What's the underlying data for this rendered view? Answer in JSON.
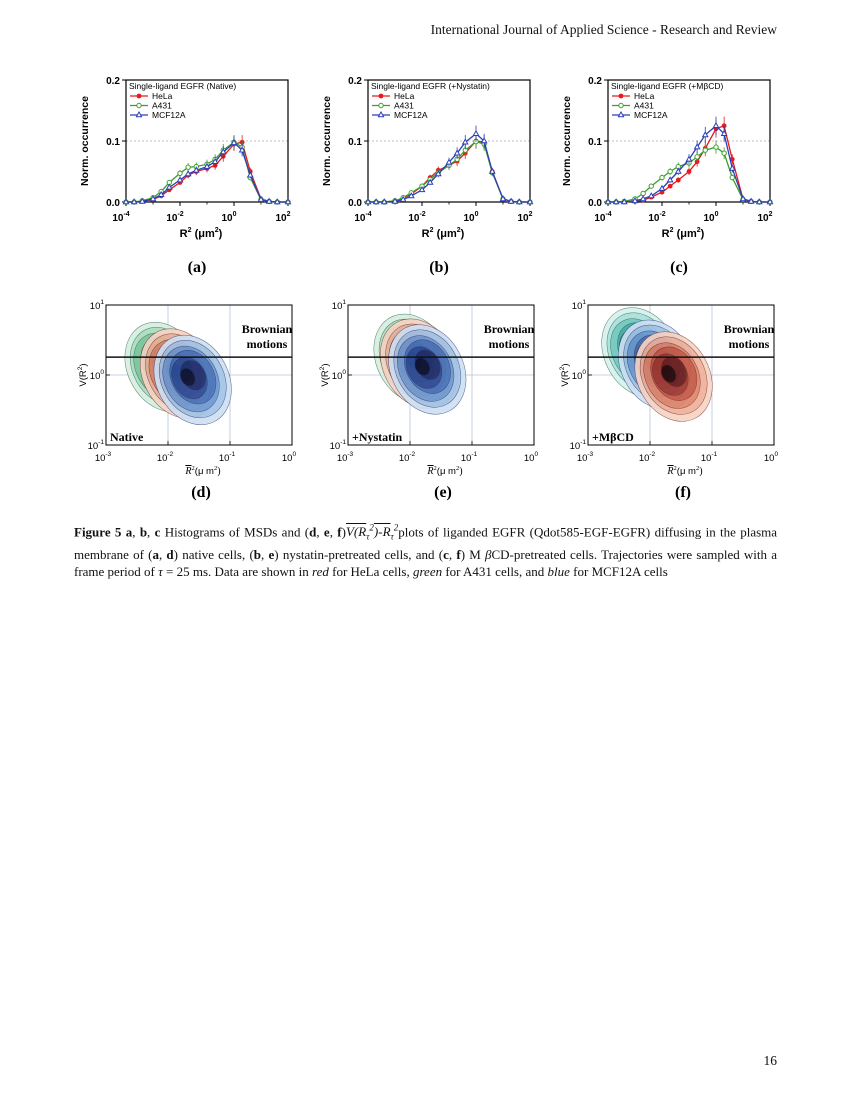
{
  "header": {
    "journal": "International Journal of Applied Science - Research and Review"
  },
  "page_number": "16",
  "hist_panels": [
    {
      "id": "a",
      "letter": "(a)",
      "legend_title": "Single-ligand EGFR (Native)"
    },
    {
      "id": "b",
      "letter": "(b)",
      "legend_title": "Single-ligand EGFR (+Nystatin)"
    },
    {
      "id": "c",
      "letter": "(c)",
      "legend_title": "Single-ligand EGFR (+MβCD)"
    }
  ],
  "hist_axes": {
    "ylabel": "Norm. occurrence",
    "xlabel_main": "R",
    "xlabel_sup": "2",
    "xlabel_unit": "(μm",
    "xlabel_unit_sup": "2",
    "xlabel_close": ")",
    "yticks": [
      "0.0",
      "0.1",
      "0.2"
    ],
    "xticks": [
      {
        "base": "10",
        "exp": "-4"
      },
      {
        "base": "10",
        "exp": "-2"
      },
      {
        "base": "10",
        "exp": "0"
      },
      {
        "base": "10",
        "exp": "2"
      }
    ]
  },
  "legend": [
    "HeLa",
    "A431",
    "MCF12A"
  ],
  "colors": {
    "HeLa": "#e41a1c",
    "A431": "#3aa02a",
    "MCF12A": "#2b3fb8",
    "gray": "#9a9a9a"
  },
  "contour_panels": [
    {
      "id": "d",
      "letter": "(d)",
      "condition": "Native"
    },
    {
      "id": "e",
      "letter": "(e)",
      "condition": "+Nystatin"
    },
    {
      "id": "f",
      "letter": "(f)",
      "condition": "+MβCD"
    }
  ],
  "contour_axes": {
    "brownian_line1": "Brownian",
    "brownian_line2": "motions",
    "ylabel_main": "V(R",
    "ylabel_sup": "2",
    "ylabel_close": ")",
    "xlabel_main": "R",
    "xlabel_sup": "2",
    "xlabel_unit": "(μ m",
    "xlabel_unit_sup": "2",
    "xlabel_close": ")",
    "yticks": [
      {
        "base": "10",
        "exp": "1"
      },
      {
        "base": "10",
        "exp": "0"
      },
      {
        "base": "10",
        "exp": "-1"
      }
    ],
    "xticks": [
      {
        "base": "10",
        "exp": "-3"
      },
      {
        "base": "10",
        "exp": "-2"
      },
      {
        "base": "10",
        "exp": "-1"
      },
      {
        "base": "10",
        "exp": "0"
      }
    ]
  },
  "chart_data": [
    {
      "type": "line",
      "panel": "a",
      "xscale": "log",
      "xlim": [
        0.0001,
        100
      ],
      "ylim": [
        0,
        0.2
      ],
      "legend": "top-left",
      "x": [
        0.0001,
        0.0002,
        0.0004,
        0.001,
        0.002,
        0.004,
        0.01,
        0.02,
        0.04,
        0.1,
        0.2,
        0.4,
        1,
        2,
        4,
        10,
        20,
        40,
        100
      ],
      "series": [
        {
          "name": "HeLa",
          "values": [
            0,
            0,
            0.001,
            0.004,
            0.01,
            0.02,
            0.032,
            0.044,
            0.05,
            0.055,
            0.06,
            0.075,
            0.095,
            0.098,
            0.05,
            0.005,
            0.001,
            0,
            0
          ]
        },
        {
          "name": "A431",
          "values": [
            0,
            0,
            0.002,
            0.007,
            0.017,
            0.032,
            0.047,
            0.057,
            0.058,
            0.062,
            0.07,
            0.085,
            0.098,
            0.09,
            0.04,
            0.004,
            0.001,
            0,
            0
          ]
        },
        {
          "name": "MCF12A",
          "values": [
            0,
            0,
            0.001,
            0.005,
            0.012,
            0.024,
            0.036,
            0.046,
            0.052,
            0.058,
            0.066,
            0.082,
            0.097,
            0.085,
            0.044,
            0.004,
            0.001,
            0,
            0
          ]
        }
      ]
    },
    {
      "type": "line",
      "panel": "b",
      "xscale": "log",
      "xlim": [
        0.0001,
        100
      ],
      "ylim": [
        0,
        0.2
      ],
      "legend": "top-left",
      "x": [
        0.0001,
        0.0002,
        0.0004,
        0.001,
        0.002,
        0.004,
        0.01,
        0.02,
        0.04,
        0.1,
        0.2,
        0.4,
        1,
        2,
        4,
        10,
        20,
        40,
        100
      ],
      "series": [
        {
          "name": "HeLa",
          "values": [
            0,
            0,
            0,
            0.002,
            0.006,
            0.013,
            0.026,
            0.04,
            0.052,
            0.06,
            0.067,
            0.08,
            0.1,
            0.098,
            0.05,
            0.005,
            0.001,
            0,
            0
          ]
        },
        {
          "name": "A431",
          "values": [
            0,
            0,
            0,
            0.002,
            0.007,
            0.015,
            0.026,
            0.037,
            0.048,
            0.06,
            0.07,
            0.085,
            0.099,
            0.095,
            0.048,
            0.005,
            0.001,
            0,
            0
          ]
        },
        {
          "name": "MCF12A",
          "values": [
            0,
            0,
            0,
            0.001,
            0.004,
            0.01,
            0.02,
            0.032,
            0.046,
            0.065,
            0.08,
            0.098,
            0.112,
            0.1,
            0.05,
            0.005,
            0.001,
            0,
            0
          ]
        }
      ]
    },
    {
      "type": "line",
      "panel": "c",
      "xscale": "log",
      "xlim": [
        0.0001,
        100
      ],
      "ylim": [
        0,
        0.2
      ],
      "legend": "top-left",
      "x": [
        0.0001,
        0.0002,
        0.0004,
        0.001,
        0.002,
        0.004,
        0.01,
        0.02,
        0.04,
        0.1,
        0.2,
        0.4,
        1,
        2,
        4,
        10,
        20,
        40,
        100
      ],
      "series": [
        {
          "name": "HeLa",
          "values": [
            0,
            0,
            0,
            0.001,
            0.003,
            0.008,
            0.016,
            0.026,
            0.036,
            0.05,
            0.066,
            0.088,
            0.12,
            0.125,
            0.07,
            0.005,
            0.001,
            0,
            0
          ]
        },
        {
          "name": "A431",
          "values": [
            0,
            0,
            0.001,
            0.005,
            0.014,
            0.026,
            0.04,
            0.05,
            0.058,
            0.064,
            0.074,
            0.085,
            0.09,
            0.08,
            0.04,
            0.004,
            0.001,
            0,
            0
          ]
        },
        {
          "name": "MCF12A",
          "values": [
            0,
            0,
            0,
            0.002,
            0.005,
            0.01,
            0.022,
            0.036,
            0.05,
            0.07,
            0.09,
            0.11,
            0.125,
            0.112,
            0.055,
            0.005,
            0.001,
            0,
            0
          ]
        }
      ]
    },
    {
      "type": "heatmap",
      "panel": "d",
      "xscale": "log",
      "yscale": "log",
      "xlim": [
        0.001,
        1
      ],
      "ylim": [
        0.1,
        10
      ],
      "reference_line_y": 1.8,
      "series": [
        {
          "name": "A431",
          "center": [
            0.0085,
            1.3
          ]
        },
        {
          "name": "HeLa",
          "center": [
            0.015,
            1.05
          ]
        },
        {
          "name": "MCF12A",
          "center": [
            0.025,
            0.85
          ]
        }
      ]
    },
    {
      "type": "heatmap",
      "panel": "e",
      "xscale": "log",
      "yscale": "log",
      "xlim": [
        0.001,
        1
      ],
      "ylim": [
        0.1,
        10
      ],
      "reference_line_y": 1.8,
      "series": [
        {
          "name": "A431",
          "center": [
            0.011,
            1.7
          ]
        },
        {
          "name": "HeLa",
          "center": [
            0.014,
            1.45
          ]
        },
        {
          "name": "MCF12A",
          "center": [
            0.019,
            1.2
          ]
        }
      ]
    },
    {
      "type": "heatmap",
      "panel": "f",
      "xscale": "log",
      "yscale": "log",
      "xlim": [
        0.001,
        1
      ],
      "ylim": [
        0.1,
        10
      ],
      "reference_line_y": 1.8,
      "series": [
        {
          "name": "A431",
          "center": [
            0.007,
            2.1
          ]
        },
        {
          "name": "MCF12A",
          "center": [
            0.013,
            1.4
          ]
        },
        {
          "name": "HeLa",
          "center": [
            0.024,
            0.95
          ]
        }
      ]
    }
  ],
  "caption": {
    "fig_label": "Figure 5",
    "a": "a",
    "comma": ",",
    "b": "b",
    "c": "c",
    "text1": " Histograms of MSDs and (",
    "d": "d",
    "e": "e",
    "f": "f",
    "text2": ")",
    "formula": "V(R",
    "formula_sub": "τ",
    "formula_sup": "2",
    "formula_mid": ")-R",
    "formula_sub2": "τ",
    "formula_sup2": "2",
    "text3": "plots of liganded EGFR (Qdot585-EGF-EGFR) diffusing in the plasma membrane of (",
    "text4": ") native cells, (",
    "text5": ") nystatin-pretreated cells, and (",
    "text6": ") M ",
    "beta": "β",
    "text7": "CD-pretreated cells. Trajectories were sampled with a frame period of ",
    "tau": "τ",
    "text8": " = 25 ms. Data are shown in ",
    "red": "red",
    "text9": " for HeLa cells, ",
    "green": "green",
    "text10": " for A431 cells, and ",
    "blue": "blue",
    "text11": " for MCF12A cells"
  }
}
